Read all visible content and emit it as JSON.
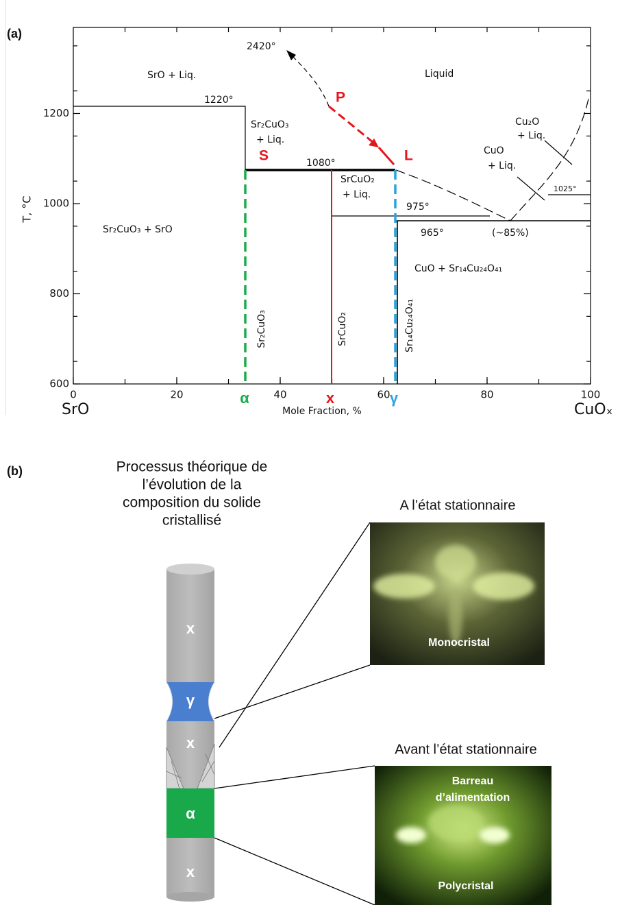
{
  "panel_a": {
    "label": "(a)",
    "y_axis_label": "T, °C",
    "x_axis_label": "Mole Fraction, %",
    "x_left_label": "SrO",
    "x_right_label": "CuOₓ",
    "xlim": [
      0,
      100
    ],
    "ylim": [
      600,
      1400
    ],
    "xticks": [
      0,
      20,
      40,
      60,
      80,
      100
    ],
    "yticks": [
      600,
      800,
      1000,
      1200
    ],
    "annotations": [
      "2420°",
      "SrO + Liq.",
      "Liquid",
      "1220°",
      "Sr₂CuO₃",
      "+ Liq.",
      "1080°",
      "SrCuO₂",
      "+ Liq.",
      "975°",
      "965°",
      "(~85%)",
      "Cu₂O",
      "+ Liq.",
      "CuO",
      "+ Liq.",
      "1025°",
      "Sr₂CuO₃ + SrO",
      "CuO + Sr₁₄Cu₂₄O₄₁"
    ],
    "compounds": [
      "Sr₂CuO₃",
      "SrCuO₂",
      "Sr₁₄Cu₂₄O₄₁"
    ],
    "points": [
      "P",
      "S",
      "L"
    ],
    "markers": [
      {
        "label": "α",
        "color": "#1aab4a"
      },
      {
        "label": "x",
        "color": "#e8141c"
      },
      {
        "label": "γ",
        "color": "#29a3e0"
      }
    ]
  },
  "panel_b": {
    "label": "(b)",
    "title": [
      "Processus théorique de",
      "l’évolution de la",
      "composition du solide",
      "cristallisé"
    ],
    "rod_labels": [
      "x",
      "γ",
      "x",
      "α",
      "x"
    ],
    "photo_top": {
      "title": "A l’état stationnaire",
      "caption": "Monocristal"
    },
    "photo_bottom": {
      "title": "Avant l’état stationnaire",
      "captions": [
        "Barreau",
        "d’alimentation",
        "Polycristal"
      ]
    }
  }
}
